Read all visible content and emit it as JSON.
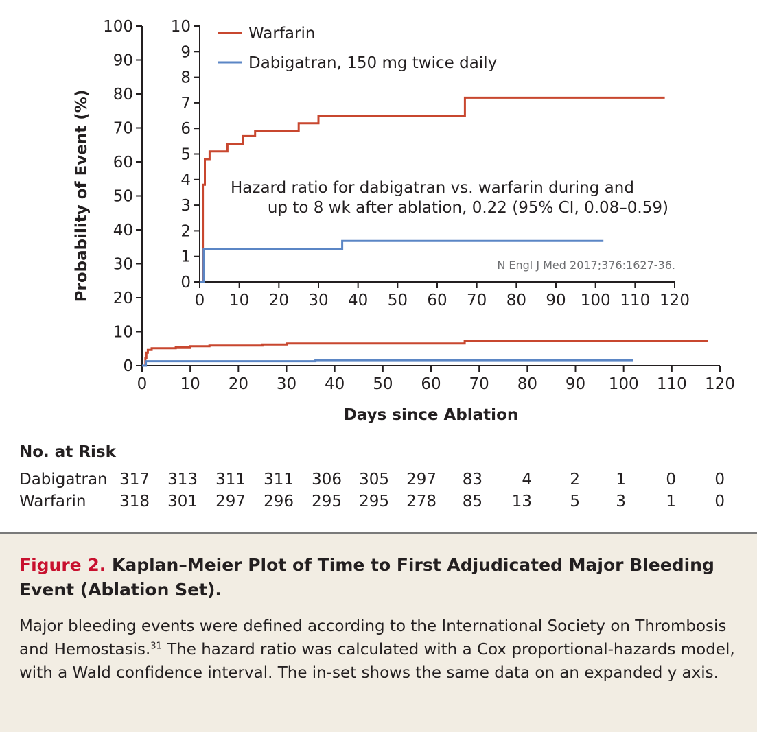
{
  "chart_data": [
    {
      "type": "line",
      "role": "main",
      "xlabel": "Days since Ablation",
      "ylabel": "Probability of Event (%)",
      "xlim": [
        0,
        120
      ],
      "ylim": [
        0,
        100
      ],
      "xticks": [
        0,
        10,
        20,
        30,
        40,
        50,
        60,
        70,
        80,
        90,
        100,
        110,
        120
      ],
      "yticks": [
        0,
        10,
        20,
        30,
        40,
        50,
        60,
        70,
        80,
        90,
        100
      ],
      "step": true,
      "series": [
        {
          "name": "Warfarin",
          "color": "#c8472f",
          "points": [
            [
              0,
              0
            ],
            [
              0.7,
              0
            ],
            [
              0.7,
              2.3
            ],
            [
              0.9,
              2.3
            ],
            [
              0.9,
              3.8
            ],
            [
              1.2,
              3.8
            ],
            [
              1.2,
              4.8
            ],
            [
              2,
              4.8
            ],
            [
              2,
              5.1
            ],
            [
              4,
              5.1
            ],
            [
              4,
              5.1
            ],
            [
              7,
              5.1
            ],
            [
              7,
              5.4
            ],
            [
              10,
              5.4
            ],
            [
              10,
              5.7
            ],
            [
              14,
              5.7
            ],
            [
              14,
              5.9
            ],
            [
              25,
              5.9
            ],
            [
              25,
              6.2
            ],
            [
              30,
              6.2
            ],
            [
              30,
              6.5
            ],
            [
              67,
              6.5
            ],
            [
              67,
              7.2
            ],
            [
              117.5,
              7.2
            ]
          ]
        },
        {
          "name": "Dabigatran, 150 mg twice daily",
          "color": "#5b86c5",
          "points": [
            [
              0,
              0
            ],
            [
              0.8,
              0
            ],
            [
              0.8,
              1.3
            ],
            [
              36,
              1.3
            ],
            [
              36,
              1.6
            ],
            [
              102,
              1.6
            ]
          ]
        }
      ]
    },
    {
      "type": "line",
      "role": "inset",
      "xlim": [
        0,
        120
      ],
      "ylim": [
        0,
        10
      ],
      "xticks": [
        0,
        10,
        20,
        30,
        40,
        50,
        60,
        70,
        80,
        90,
        100,
        110,
        120
      ],
      "yticks": [
        0,
        1,
        2,
        3,
        4,
        5,
        6,
        7,
        8,
        9,
        10
      ],
      "step": true,
      "legend": [
        "Warfarin",
        "Dabigatran, 150 mg twice daily"
      ],
      "annotation": [
        "Hazard ratio for dabigatran vs. warfarin during and",
        "up to 8 wk after ablation, 0.22 (95% CI, 0.08–0.59)"
      ],
      "citation": "N Engl J Med 2017;376:1627-36.",
      "series": [
        {
          "name": "Warfarin",
          "color": "#c8472f",
          "points": [
            [
              0,
              0
            ],
            [
              0.8,
              0
            ],
            [
              0.8,
              3.8
            ],
            [
              1.3,
              3.8
            ],
            [
              1.3,
              4.8
            ],
            [
              2.5,
              4.8
            ],
            [
              2.5,
              5.1
            ],
            [
              7,
              5.1
            ],
            [
              7,
              5.4
            ],
            [
              11,
              5.4
            ],
            [
              11,
              5.7
            ],
            [
              14,
              5.7
            ],
            [
              14,
              5.9
            ],
            [
              25,
              5.9
            ],
            [
              25,
              6.2
            ],
            [
              30,
              6.2
            ],
            [
              30,
              6.5
            ],
            [
              67,
              6.5
            ],
            [
              67,
              7.2
            ],
            [
              117.5,
              7.2
            ]
          ]
        },
        {
          "name": "Dabigatran, 150 mg twice daily",
          "color": "#5b86c5",
          "points": [
            [
              0,
              0
            ],
            [
              1,
              0
            ],
            [
              1,
              1.3
            ],
            [
              36,
              1.3
            ],
            [
              36,
              1.6
            ],
            [
              102,
              1.6
            ]
          ]
        }
      ]
    }
  ],
  "risk_table": {
    "title": "No. at Risk",
    "rows": [
      {
        "label": "Dabigatran",
        "values": [
          "317",
          "313",
          "311",
          "311",
          "306",
          "305",
          "297",
          "83",
          "4",
          "2",
          "1",
          "0",
          "0"
        ]
      },
      {
        "label": "Warfarin",
        "values": [
          "318",
          "301",
          "297",
          "296",
          "295",
          "295",
          "278",
          "85",
          "13",
          "5",
          "3",
          "1",
          "0"
        ]
      }
    ]
  },
  "caption": {
    "label": "Figure 2.",
    "title": "Kaplan–Meier Plot of Time to First Adjudicated Major Bleeding Event (Ablation Set).",
    "body_part1": "Major bleeding events were defined according to the International Society on Thrombosis and Hemostasis.",
    "ref": "31",
    "body_part2": " The hazard ratio was calculated with a Cox proportional-hazards model, with a Wald confidence interval. The in-set shows the same data on an expanded y axis."
  }
}
